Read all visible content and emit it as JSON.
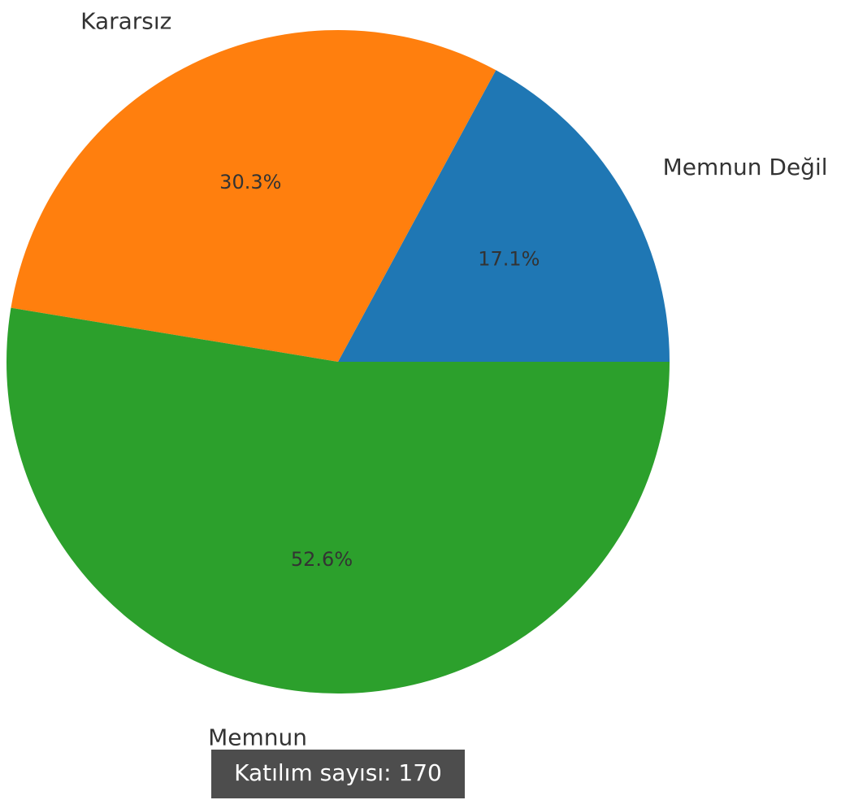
{
  "chart_data": {
    "type": "pie",
    "categories": [
      "Memnun Değil",
      "Kararsız",
      "Memnun"
    ],
    "values": [
      17.1,
      30.3,
      52.6
    ],
    "value_labels": [
      "17.1%",
      "30.3%",
      "52.6%"
    ],
    "colors": [
      "#1f77b4",
      "#ff7f0e",
      "#2ca02c"
    ],
    "annotation": "Katılım sayısı: 170"
  }
}
